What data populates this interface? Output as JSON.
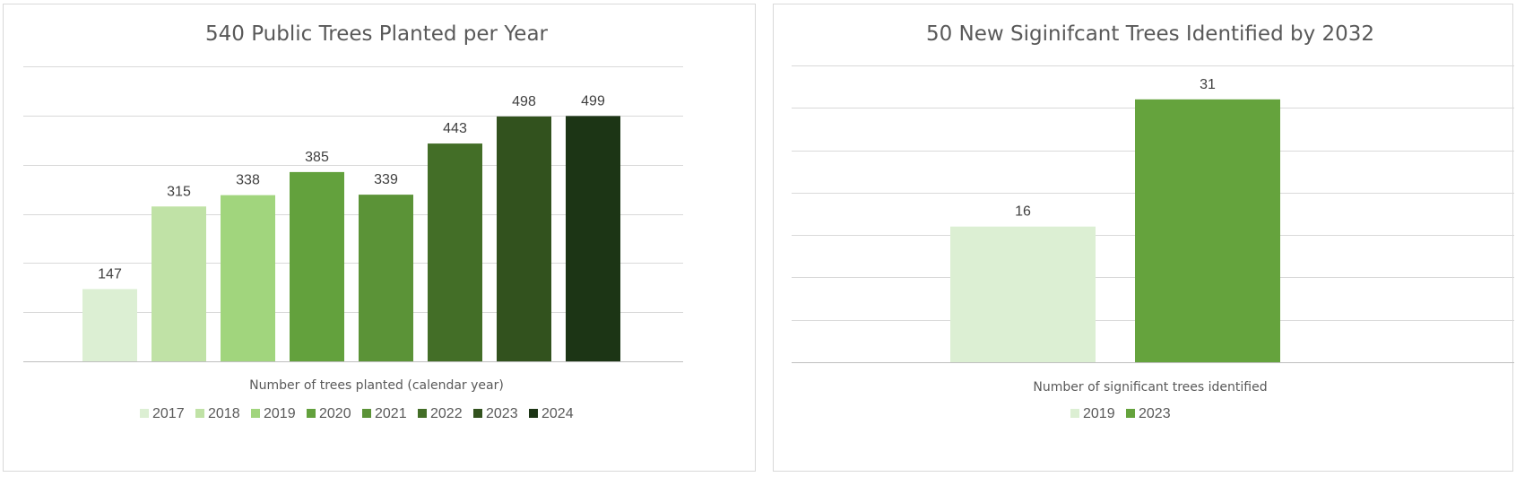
{
  "chart_data": [
    {
      "type": "bar",
      "title": "540 Public Trees Planted per Year",
      "xlabel": "Number of trees planted (calendar year)",
      "ylabel": "",
      "legend_position": "bottom",
      "grid": true,
      "ylim": [
        0,
        600
      ],
      "gridline_step": 100,
      "series": [
        {
          "name": "2017",
          "value": 147,
          "color": "#dcefd3"
        },
        {
          "name": "2018",
          "value": 315,
          "color": "#c0e2a6"
        },
        {
          "name": "2019",
          "value": 338,
          "color": "#a1d57d"
        },
        {
          "name": "2020",
          "value": 385,
          "color": "#63a13d"
        },
        {
          "name": "2021",
          "value": 339,
          "color": "#5b9337"
        },
        {
          "name": "2022",
          "value": 443,
          "color": "#436e27"
        },
        {
          "name": "2023",
          "value": 498,
          "color": "#32521e"
        },
        {
          "name": "2024",
          "value": 499,
          "color": "#1c3515"
        }
      ]
    },
    {
      "type": "bar",
      "title": "50 New Siginifcant Trees Identified by 2032",
      "xlabel": "Number of significant trees identified",
      "ylabel": "",
      "legend_position": "bottom",
      "grid": true,
      "ylim": [
        0,
        35
      ],
      "gridline_step": 5,
      "series": [
        {
          "name": "2019",
          "value": 16,
          "color": "#dcefd3"
        },
        {
          "name": "2023",
          "value": 31,
          "color": "#65a33d"
        }
      ]
    }
  ]
}
